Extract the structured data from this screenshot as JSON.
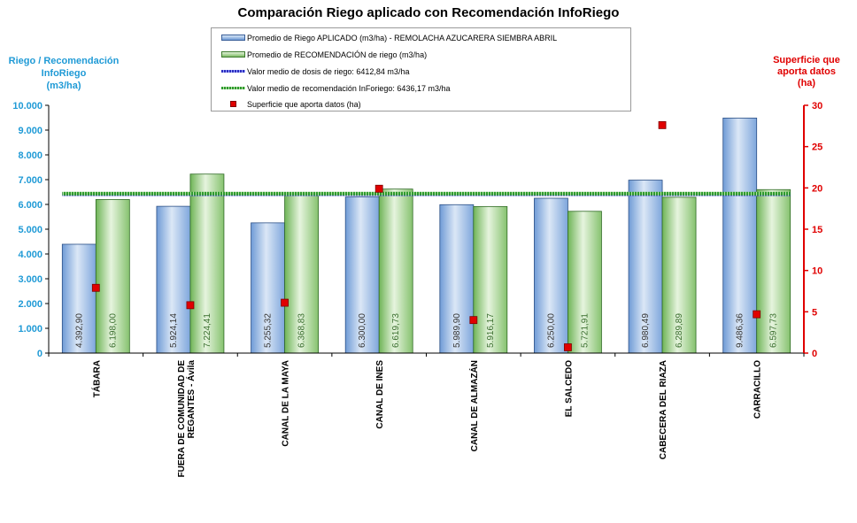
{
  "chart_data": {
    "type": "bar",
    "title": "Comparación Riego aplicado con Recomendación InfoRiego",
    "ylabel": "Riego / Recomendación InfoRiego (m3/ha)",
    "ylabel_lines": [
      "Riego / Recomendación",
      "InfoRiego",
      "(m3/ha)"
    ],
    "y2label": "Superficie que aporta datos (ha)",
    "y2label_lines": [
      "Superficie que",
      "aporta datos",
      "(ha)"
    ],
    "ylim": [
      0,
      10000
    ],
    "y2lim": [
      0,
      30
    ],
    "yticks": [
      "0",
      "1.000",
      "2.000",
      "3.000",
      "4.000",
      "5.000",
      "6.000",
      "7.000",
      "8.000",
      "9.000",
      "10.000"
    ],
    "y2ticks": [
      "0",
      "5",
      "10",
      "15",
      "20",
      "25",
      "30"
    ],
    "categories": [
      "TÁBARA",
      "FUERA DE COMUNIDAD DE REGANTES - Ávila",
      "CANAL DE LA MAYA",
      "CANAL DE INES",
      "CANAL DE ALMAZÁN",
      "EL SALCEDO",
      "CABECERA DEL RIAZA",
      "CARRACILLO"
    ],
    "category_lines": [
      [
        "TÁBARA"
      ],
      [
        "FUERA DE COMUNIDAD DE",
        "REGANTES - Ávila"
      ],
      [
        "CANAL DE LA MAYA"
      ],
      [
        "CANAL DE INES"
      ],
      [
        "CANAL DE ALMAZÁN"
      ],
      [
        "EL SALCEDO"
      ],
      [
        "CABECERA DEL RIAZA"
      ],
      [
        "CARRACILLO"
      ]
    ],
    "series": [
      {
        "name": "Promedio de Riego APLICADO (m3/ha) - REMOLACHA AZUCARERA SIEMBRA ABRIL",
        "values": [
          4392.9,
          5924.14,
          5255.32,
          6300.0,
          5989.9,
          6250.0,
          6980.49,
          9486.36
        ],
        "labels": [
          "4.392,90",
          "5.924,14",
          "5.255,32",
          "6.300,00",
          "5.989,90",
          "6.250,00",
          "6.980,49",
          "9.486,36"
        ],
        "color": "#8fb4e3"
      },
      {
        "name": "Promedio de RECOMENDACIÓN de riego (m3/ha)",
        "values": [
          6198.0,
          7224.41,
          6368.83,
          6619.73,
          5916.17,
          5721.91,
          6289.89,
          6597.73
        ],
        "labels": [
          "6.198,00",
          "7.224,41",
          "6.368,83",
          "6.619,73",
          "5.916,17",
          "5.721,91",
          "6.289,89",
          "6.597,73"
        ],
        "color": "#9fd08a"
      },
      {
        "name": "Valor medio de dosis de riego: 6412,84 m3/ha",
        "type": "hline",
        "value": 6412.84,
        "color": "#2f2fbf"
      },
      {
        "name": "Valor medio de recomendación InForiego: 6436,17 m3/ha",
        "type": "hline",
        "value": 6436.17,
        "color": "#2e9a2e"
      },
      {
        "name": "Superficie que aporta datos (ha)",
        "type": "scatter",
        "axis": "y2",
        "values": [
          7.9,
          5.8,
          6.1,
          19.9,
          4.0,
          0.7,
          27.6,
          4.7
        ],
        "color": "#e00000"
      }
    ],
    "legend": "top-center",
    "grid": false
  }
}
